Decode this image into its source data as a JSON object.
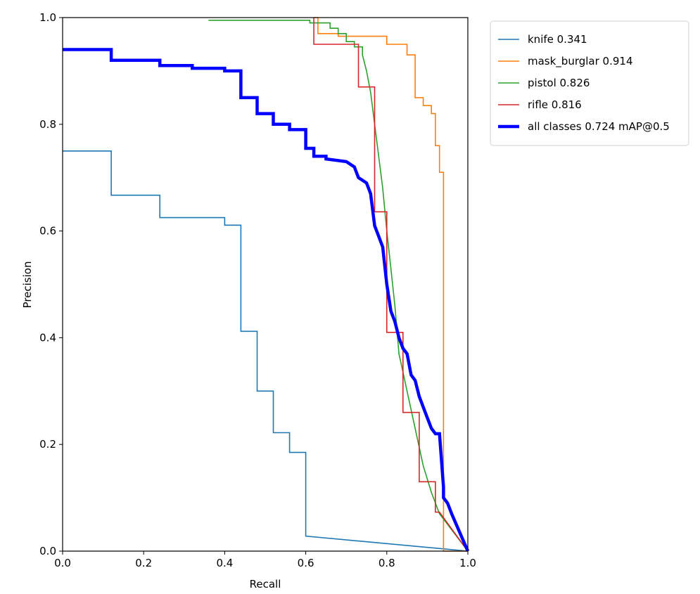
{
  "chart_data": {
    "type": "line",
    "title": "",
    "xlabel": "Recall",
    "ylabel": "Precision",
    "xlim": [
      0,
      1
    ],
    "ylim": [
      0,
      1
    ],
    "xticks": [
      "0.0",
      "0.2",
      "0.4",
      "0.6",
      "0.8",
      "1.0"
    ],
    "yticks": [
      "0.0",
      "0.2",
      "0.4",
      "0.6",
      "0.8",
      "1.0"
    ],
    "grid": false,
    "legend_position": "outside-top-right",
    "series": [
      {
        "name": "knife 0.341",
        "color": "#1f77b4",
        "width": "thin",
        "x": [
          0.0,
          0.12,
          0.12,
          0.24,
          0.24,
          0.4,
          0.4,
          0.44,
          0.44,
          0.48,
          0.48,
          0.52,
          0.52,
          0.56,
          0.56,
          0.6,
          0.6,
          1.0
        ],
        "y": [
          0.75,
          0.75,
          0.667,
          0.667,
          0.625,
          0.625,
          0.611,
          0.611,
          0.412,
          0.412,
          0.3,
          0.3,
          0.222,
          0.222,
          0.185,
          0.185,
          0.028,
          0.0
        ]
      },
      {
        "name": "mask_burglar 0.914",
        "color": "#ff7f0e",
        "width": "thin",
        "x": [
          0.62,
          0.63,
          0.63,
          0.68,
          0.68,
          0.8,
          0.8,
          0.85,
          0.85,
          0.87,
          0.87,
          0.89,
          0.89,
          0.91,
          0.91,
          0.92,
          0.92,
          0.93,
          0.93,
          0.94,
          0.94,
          1.0
        ],
        "y": [
          1.0,
          1.0,
          0.97,
          0.97,
          0.965,
          0.965,
          0.95,
          0.95,
          0.93,
          0.93,
          0.85,
          0.85,
          0.835,
          0.835,
          0.82,
          0.82,
          0.76,
          0.76,
          0.71,
          0.71,
          0.0,
          0.0
        ]
      },
      {
        "name": "pistol 0.826",
        "color": "#2ca02c",
        "width": "thin",
        "x": [
          0.36,
          0.36,
          0.61,
          0.61,
          0.66,
          0.66,
          0.68,
          0.68,
          0.7,
          0.7,
          0.72,
          0.72,
          0.74,
          0.74,
          0.75,
          0.76,
          0.77,
          0.78,
          0.79,
          0.8,
          0.81,
          0.82,
          0.83,
          0.85,
          0.87,
          0.89,
          0.91,
          0.93,
          0.96,
          1.0
        ],
        "y": [
          0.995,
          0.995,
          0.995,
          0.99,
          0.99,
          0.98,
          0.98,
          0.97,
          0.97,
          0.955,
          0.955,
          0.945,
          0.945,
          0.93,
          0.9,
          0.86,
          0.8,
          0.74,
          0.68,
          0.6,
          0.53,
          0.46,
          0.37,
          0.3,
          0.23,
          0.16,
          0.11,
          0.07,
          0.04,
          0.0
        ]
      },
      {
        "name": "rifle 0.816",
        "color": "#d62728",
        "width": "thin",
        "x": [
          0.62,
          0.62,
          0.73,
          0.73,
          0.77,
          0.77,
          0.8,
          0.8,
          0.81,
          0.81,
          0.84,
          0.84,
          0.85,
          0.85,
          0.88,
          0.88,
          0.92,
          0.92,
          0.93,
          0.93,
          1.0
        ],
        "y": [
          1.0,
          0.95,
          0.95,
          0.87,
          0.87,
          0.636,
          0.636,
          0.41,
          0.41,
          0.41,
          0.41,
          0.26,
          0.26,
          0.26,
          0.26,
          0.13,
          0.13,
          0.073,
          0.073,
          0.073,
          0.0
        ]
      },
      {
        "name": "all classes 0.724 mAP@0.5",
        "color": "#0000ff",
        "width": "thick",
        "x": [
          0.0,
          0.12,
          0.12,
          0.24,
          0.24,
          0.32,
          0.32,
          0.4,
          0.4,
          0.44,
          0.44,
          0.48,
          0.48,
          0.52,
          0.52,
          0.56,
          0.56,
          0.6,
          0.6,
          0.62,
          0.62,
          0.65,
          0.65,
          0.7,
          0.72,
          0.73,
          0.75,
          0.76,
          0.77,
          0.78,
          0.79,
          0.8,
          0.81,
          0.82,
          0.83,
          0.84,
          0.85,
          0.86,
          0.87,
          0.88,
          0.89,
          0.9,
          0.91,
          0.92,
          0.93,
          0.94,
          0.94,
          0.95,
          0.96,
          1.0
        ],
        "y": [
          0.94,
          0.94,
          0.92,
          0.92,
          0.91,
          0.91,
          0.905,
          0.905,
          0.9,
          0.9,
          0.85,
          0.85,
          0.82,
          0.82,
          0.8,
          0.8,
          0.79,
          0.79,
          0.755,
          0.755,
          0.74,
          0.74,
          0.735,
          0.73,
          0.72,
          0.7,
          0.69,
          0.67,
          0.61,
          0.59,
          0.57,
          0.5,
          0.45,
          0.43,
          0.4,
          0.38,
          0.37,
          0.33,
          0.32,
          0.29,
          0.27,
          0.25,
          0.23,
          0.22,
          0.22,
          0.12,
          0.1,
          0.09,
          0.07,
          0.0
        ]
      }
    ]
  }
}
